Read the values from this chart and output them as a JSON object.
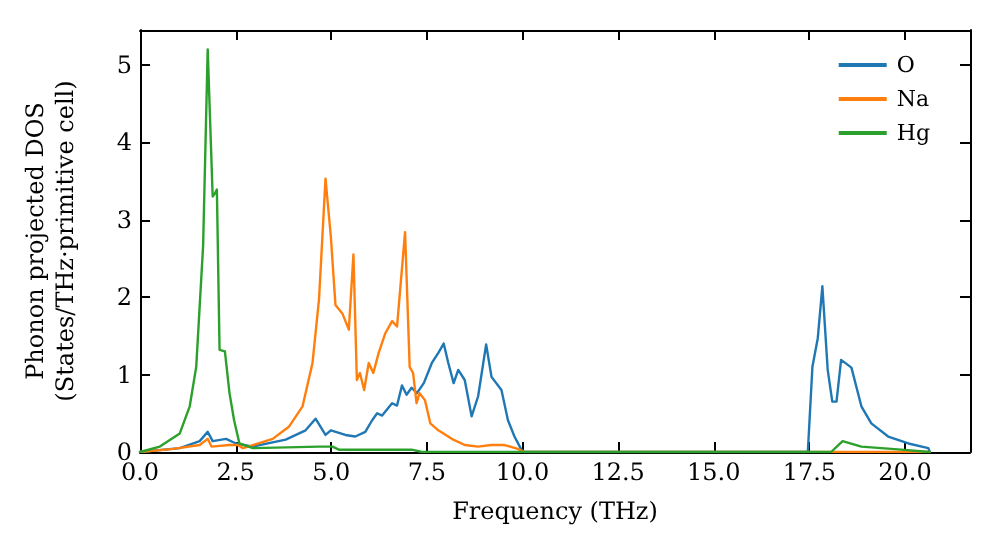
{
  "chart_data": {
    "type": "line",
    "xlabel": "Frequency (THz)",
    "ylabel": "Phonon projected DOS\n(States/THz·primitive cell)",
    "xlim": [
      0,
      21.7
    ],
    "xticks": [
      {
        "value": 0,
        "label": "0.0"
      },
      {
        "value": 2.5,
        "label": "2.5"
      },
      {
        "value": 5,
        "label": "5.0"
      },
      {
        "value": 7.5,
        "label": "7.5"
      },
      {
        "value": 10,
        "label": "10.0"
      },
      {
        "value": 12.5,
        "label": "12.5"
      },
      {
        "value": 15,
        "label": "15.0"
      },
      {
        "value": 17.5,
        "label": "17.5"
      },
      {
        "value": 20,
        "label": "20.0"
      }
    ],
    "ylim": [
      0,
      5.45
    ],
    "yticks": [
      0,
      1,
      2,
      3,
      4,
      5
    ],
    "grid": false,
    "legend": "top right",
    "marker": "none",
    "line_style": "solid",
    "series": [
      {
        "name": "O",
        "color": "#1f77b4",
        "x": [
          0,
          1.04,
          1.56,
          1.77,
          1.9,
          2.25,
          2.51,
          2.95,
          3.81,
          4.33,
          4.59,
          4.85,
          4.99,
          5.37,
          5.63,
          5.89,
          6.07,
          6.2,
          6.33,
          6.59,
          6.72,
          6.85,
          6.97,
          7.1,
          7.24,
          7.42,
          7.63,
          7.8,
          7.94,
          8.06,
          8.2,
          8.32,
          8.49,
          8.67,
          8.84,
          9.05,
          9.19,
          9.45,
          9.62,
          9.79,
          9.97,
          10.05,
          17.46,
          17.58,
          17.72,
          17.84,
          17.98,
          18.1,
          18.21,
          18.33,
          18.6,
          18.86,
          19.12,
          19.56,
          20.09,
          20.61,
          20.65
        ],
        "values": [
          0,
          0.05,
          0.14,
          0.26,
          0.14,
          0.17,
          0.11,
          0.07,
          0.16,
          0.28,
          0.43,
          0.22,
          0.28,
          0.22,
          0.2,
          0.26,
          0.41,
          0.5,
          0.47,
          0.63,
          0.6,
          0.86,
          0.74,
          0.83,
          0.76,
          0.89,
          1.15,
          1.28,
          1.4,
          1.15,
          0.89,
          1.06,
          0.93,
          0.46,
          0.72,
          1.39,
          0.97,
          0.8,
          0.41,
          0.2,
          0.03,
          0,
          0,
          1.1,
          1.47,
          2.14,
          1.06,
          0.65,
          0.65,
          1.19,
          1.09,
          0.59,
          0.37,
          0.2,
          0.11,
          0.05,
          0
        ]
      },
      {
        "name": "Na",
        "color": "#ff7f0e",
        "x": [
          0,
          0.87,
          1.56,
          1.77,
          1.87,
          2.34,
          2.56,
          2.69,
          2.95,
          3.47,
          3.9,
          4.25,
          4.51,
          4.68,
          4.85,
          4.99,
          5.11,
          5.29,
          5.46,
          5.58,
          5.67,
          5.75,
          5.86,
          5.98,
          6.1,
          6.24,
          6.41,
          6.59,
          6.72,
          6.93,
          7.05,
          7.14,
          7.23,
          7.31,
          7.45,
          7.59,
          7.8,
          8.15,
          8.49,
          8.84,
          9.19,
          9.53,
          9.88,
          10.05,
          20.65
        ],
        "values": [
          0,
          0.04,
          0.09,
          0.17,
          0.07,
          0.09,
          0.09,
          0.05,
          0.09,
          0.17,
          0.33,
          0.59,
          1.15,
          1.97,
          3.53,
          2.78,
          1.9,
          1.79,
          1.58,
          2.55,
          0.93,
          1.02,
          0.8,
          1.15,
          1.02,
          1.28,
          1.53,
          1.69,
          1.62,
          2.84,
          1.1,
          1.02,
          0.63,
          0.76,
          0.67,
          0.37,
          0.28,
          0.17,
          0.09,
          0.07,
          0.09,
          0.09,
          0.04,
          0,
          0
        ]
      },
      {
        "name": "Hg",
        "color": "#2ca02c",
        "x": [
          0,
          0.52,
          1.04,
          1.3,
          1.47,
          1.65,
          1.77,
          1.9,
          1.96,
          2.01,
          2.08,
          2.22,
          2.34,
          2.46,
          2.6,
          2.95,
          4.68,
          5.03,
          5.2,
          7.1,
          7.37,
          18.07,
          18.37,
          18.86,
          19.9,
          20.65
        ],
        "values": [
          0,
          0.07,
          0.24,
          0.59,
          1.1,
          2.66,
          5.2,
          3.3,
          3.34,
          3.39,
          1.32,
          1.3,
          0.76,
          0.41,
          0.11,
          0.05,
          0.07,
          0.07,
          0.03,
          0.03,
          0,
          0,
          0.14,
          0.07,
          0.03,
          0
        ]
      }
    ]
  }
}
